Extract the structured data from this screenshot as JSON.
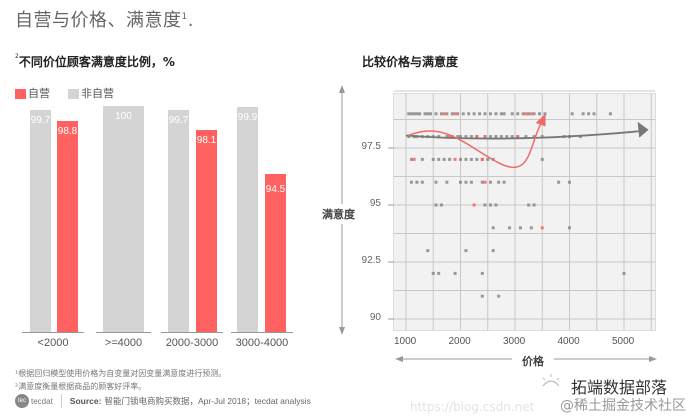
{
  "page": {
    "title": "自营与价格、满意度",
    "title_sup": "1",
    "title_suffix": "."
  },
  "left_panel": {
    "title_sup": "2",
    "title": "不同价位顾客满意度比例，%",
    "legend": [
      {
        "label": "自营",
        "color": "#ff6161"
      },
      {
        "label": "非自营",
        "color": "#d4d4d4"
      }
    ]
  },
  "right_panel": {
    "title": "比较价格与满意度",
    "ylabel": "满意度",
    "xlabel": "价格"
  },
  "footnotes": {
    "note1": "¹根据回归模型使用价格为自变量对因变量满意度进行预测。",
    "note2": "²满意度衡量根据商品的顾客好评率。"
  },
  "source": {
    "logo_text": "tecdat",
    "label": "Source:",
    "text": "智能门锁电商购买数据，Apr-Jul 2018；tecdat analysis"
  },
  "watermarks": {
    "brand": "拓端数据部落",
    "community": "@稀土掘金技术社区",
    "url": "https://blog.csdn.net"
  },
  "chart_data": [
    {
      "type": "bar",
      "title": "不同价位顾客满意度比例，%",
      "categories": [
        "<2000",
        ">=4000",
        "2000-3000",
        "3000-4000"
      ],
      "series": [
        {
          "name": "非自营",
          "color": "#d4d4d4",
          "values": [
            99.7,
            100,
            99.7,
            99.9
          ]
        },
        {
          "name": "自营",
          "color": "#ff6161",
          "values": [
            98.8,
            null,
            98.1,
            94.5
          ]
        }
      ],
      "labels": {
        "<2000": [
          "99.7",
          "98.8"
        ],
        ">=4000": [
          "100"
        ],
        "2000-3000": [
          "99.7",
          "98.1"
        ],
        "3000-4000": [
          "99.9",
          "94.5"
        ]
      },
      "legend_position": "top-left",
      "grid": false
    },
    {
      "type": "scatter",
      "title": "比较价格与满意度",
      "xlabel": "价格",
      "ylabel": "满意度",
      "xlim": [
        800,
        5700
      ],
      "ylim": [
        89.5,
        100.3
      ],
      "xticks": [
        1000,
        2000,
        3000,
        4000,
        5000
      ],
      "yticks": [
        90,
        92.5,
        95,
        97.5
      ],
      "grid": true,
      "series": [
        {
          "name": "非自营",
          "color": "#888888",
          "points": [
            [
              1050,
              99
            ],
            [
              1100,
              99
            ],
            [
              1150,
              99
            ],
            [
              1200,
              99
            ],
            [
              1250,
              99
            ],
            [
              1350,
              99
            ],
            [
              1400,
              99
            ],
            [
              1450,
              99
            ],
            [
              1550,
              99
            ],
            [
              1650,
              99
            ],
            [
              1750,
              99
            ],
            [
              1850,
              99
            ],
            [
              1950,
              99
            ],
            [
              2050,
              99
            ],
            [
              2150,
              99
            ],
            [
              2250,
              99
            ],
            [
              2350,
              99
            ],
            [
              2450,
              99
            ],
            [
              2550,
              99
            ],
            [
              2650,
              99
            ],
            [
              2750,
              99
            ],
            [
              2800,
              99
            ],
            [
              2950,
              99
            ],
            [
              3050,
              99
            ],
            [
              3150,
              99
            ],
            [
              3250,
              99
            ],
            [
              3350,
              99
            ],
            [
              3450,
              99
            ],
            [
              3550,
              99
            ],
            [
              4050,
              99
            ],
            [
              4250,
              99
            ],
            [
              4350,
              99
            ],
            [
              4450,
              99
            ],
            [
              4750,
              99
            ],
            [
              1050,
              98
            ],
            [
              1150,
              98
            ],
            [
              1200,
              98
            ],
            [
              1300,
              98
            ],
            [
              1400,
              98
            ],
            [
              1500,
              98
            ],
            [
              1600,
              98
            ],
            [
              1750,
              98
            ],
            [
              1850,
              98
            ],
            [
              1950,
              98
            ],
            [
              2000,
              98
            ],
            [
              2100,
              98
            ],
            [
              2200,
              98
            ],
            [
              2300,
              98
            ],
            [
              2450,
              98
            ],
            [
              2550,
              98
            ],
            [
              2650,
              98
            ],
            [
              2750,
              98
            ],
            [
              2850,
              98
            ],
            [
              2950,
              98
            ],
            [
              3050,
              98
            ],
            [
              3200,
              98
            ],
            [
              3350,
              98
            ],
            [
              3500,
              98
            ],
            [
              3900,
              98
            ],
            [
              4000,
              98
            ],
            [
              4200,
              98
            ],
            [
              1100,
              97
            ],
            [
              1300,
              97
            ],
            [
              1500,
              97
            ],
            [
              1600,
              97
            ],
            [
              1700,
              97
            ],
            [
              1800,
              97
            ],
            [
              2000,
              97
            ],
            [
              2100,
              97
            ],
            [
              2200,
              97
            ],
            [
              2300,
              97
            ],
            [
              2400,
              97
            ],
            [
              2500,
              97
            ],
            [
              2600,
              97
            ],
            [
              3500,
              97
            ],
            [
              1100,
              96
            ],
            [
              1200,
              96
            ],
            [
              1300,
              96
            ],
            [
              1550,
              96
            ],
            [
              1750,
              96
            ],
            [
              2000,
              96
            ],
            [
              2100,
              96
            ],
            [
              2200,
              96
            ],
            [
              2400,
              96
            ],
            [
              2550,
              96
            ],
            [
              2700,
              96
            ],
            [
              2800,
              96
            ],
            [
              3800,
              96
            ],
            [
              4000,
              96
            ],
            [
              1550,
              95
            ],
            [
              1650,
              95
            ],
            [
              2450,
              95
            ],
            [
              2550,
              95
            ],
            [
              2650,
              95
            ],
            [
              3250,
              95
            ],
            [
              3350,
              95
            ],
            [
              2600,
              94
            ],
            [
              2900,
              94
            ],
            [
              3100,
              94
            ],
            [
              3300,
              94
            ],
            [
              4000,
              94
            ],
            [
              1400,
              93
            ],
            [
              2100,
              93
            ],
            [
              2600,
              93
            ],
            [
              1500,
              92
            ],
            [
              1600,
              92
            ],
            [
              1900,
              92
            ],
            [
              2400,
              92
            ],
            [
              5000,
              92
            ],
            [
              2400,
              91
            ],
            [
              2700,
              91
            ]
          ]
        },
        {
          "name": "自营",
          "color": "#ff6161",
          "points": [
            [
              1700,
              99
            ],
            [
              1900,
              99
            ],
            [
              3200,
              99
            ],
            [
              3300,
              99
            ],
            [
              1800,
              98
            ],
            [
              2300,
              98
            ],
            [
              2450,
              98
            ],
            [
              3050,
              98
            ],
            [
              1150,
              97
            ],
            [
              1900,
              97
            ],
            [
              2400,
              97
            ],
            [
              2450,
              96
            ],
            [
              2250,
              95
            ],
            [
              3500,
              94
            ]
          ]
        }
      ],
      "annotations": [
        {
          "type": "trend-arrow",
          "color": "#888888",
          "description": "gray regression trend, nearly flat ~98.0 rising to ~98.3 at 5500"
        },
        {
          "type": "curve-arrow",
          "color": "#ff6161",
          "description": "red curve starting ~98 at 1000, dipping to ~96.8 near 2800, rising to ~98.8 at 3500"
        }
      ]
    }
  ]
}
